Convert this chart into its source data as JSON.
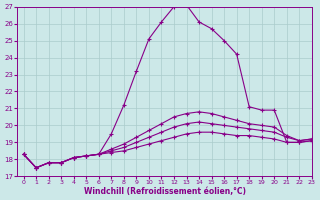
{
  "xlabel": "Windchill (Refroidissement éolien,°C)",
  "xlim": [
    -0.5,
    23
  ],
  "ylim": [
    17,
    27
  ],
  "yticks": [
    17,
    18,
    19,
    20,
    21,
    22,
    23,
    24,
    25,
    26,
    27
  ],
  "xticks": [
    0,
    1,
    2,
    3,
    4,
    5,
    6,
    7,
    8,
    9,
    10,
    11,
    12,
    13,
    14,
    15,
    16,
    17,
    18,
    19,
    20,
    21,
    22,
    23
  ],
  "bg_color": "#cce8e8",
  "grid_color": "#aacccc",
  "line_color": "#880088",
  "line1_y": [
    18.3,
    17.5,
    17.8,
    17.8,
    18.1,
    18.2,
    18.3,
    19.5,
    21.2,
    23.2,
    25.1,
    26.1,
    27.0,
    27.1,
    26.1,
    25.7,
    25.0,
    24.2,
    21.1,
    20.9,
    20.9,
    19.0,
    19.0,
    19.1
  ],
  "line2_y": [
    18.3,
    17.5,
    17.8,
    17.8,
    18.1,
    18.2,
    18.3,
    18.6,
    18.9,
    19.3,
    19.7,
    20.1,
    20.5,
    20.7,
    20.8,
    20.7,
    20.5,
    20.3,
    20.1,
    20.0,
    19.9,
    19.4,
    19.1,
    19.2
  ],
  "line3_y": [
    18.3,
    17.5,
    17.8,
    17.8,
    18.1,
    18.2,
    18.3,
    18.5,
    18.7,
    19.0,
    19.3,
    19.6,
    19.9,
    20.1,
    20.2,
    20.1,
    20.0,
    19.9,
    19.8,
    19.7,
    19.6,
    19.3,
    19.1,
    19.2
  ],
  "line4_y": [
    18.3,
    17.5,
    17.8,
    17.8,
    18.1,
    18.2,
    18.3,
    18.4,
    18.5,
    18.7,
    18.9,
    19.1,
    19.3,
    19.5,
    19.6,
    19.6,
    19.5,
    19.4,
    19.4,
    19.3,
    19.2,
    19.0,
    19.0,
    19.1
  ]
}
